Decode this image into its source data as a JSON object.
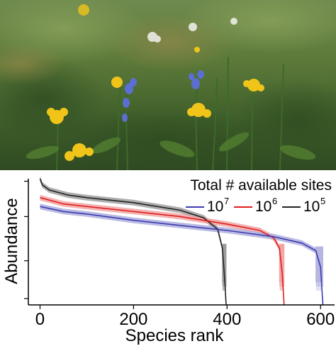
{
  "chart_data": {
    "type": "line",
    "xlabel": "Species rank",
    "ylabel": "Abundance",
    "xlim": [
      -25,
      630
    ],
    "ylim": [
      0,
      1
    ],
    "x_ticks": [
      0,
      200,
      400,
      600
    ],
    "y_ticks_visible_labels": false,
    "grid": false,
    "legend": {
      "title": "Total # available sites",
      "placement": "top-right",
      "entries": [
        {
          "base": "10",
          "exp": "7"
        },
        {
          "base": "10",
          "exp": "6"
        },
        {
          "base": "10",
          "exp": "5"
        }
      ]
    },
    "series": [
      {
        "name": "10^7",
        "color": "#3b3bb0",
        "band_color": "#a9a9dc",
        "x": [
          0,
          50,
          100,
          200,
          300,
          400,
          500,
          560,
          590,
          600,
          605
        ],
        "y": [
          0.78,
          0.74,
          0.72,
          0.67,
          0.63,
          0.59,
          0.54,
          0.49,
          0.43,
          0.3,
          0.0
        ]
      },
      {
        "name": "10^6",
        "color": "#e01e1e",
        "band_color": "#f0a0a0",
        "x": [
          0,
          50,
          100,
          200,
          300,
          400,
          470,
          500,
          512,
          518,
          522
        ],
        "y": [
          0.85,
          0.8,
          0.78,
          0.74,
          0.7,
          0.64,
          0.59,
          0.53,
          0.45,
          0.25,
          0.0
        ]
      },
      {
        "name": "10^5",
        "color": "#222222",
        "band_color": "#9a9a9a",
        "x": [
          0,
          5,
          20,
          60,
          100,
          200,
          300,
          350,
          380,
          390,
          395,
          398
        ],
        "y": [
          1.0,
          0.95,
          0.91,
          0.87,
          0.85,
          0.81,
          0.75,
          0.69,
          0.6,
          0.45,
          0.2,
          0.0
        ]
      }
    ]
  }
}
